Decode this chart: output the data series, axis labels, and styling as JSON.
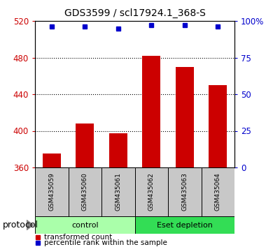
{
  "title": "GDS3599 / scl17924.1_368-S",
  "samples": [
    "GSM435059",
    "GSM435060",
    "GSM435061",
    "GSM435062",
    "GSM435063",
    "GSM435064"
  ],
  "red_values": [
    375,
    408,
    397,
    482,
    470,
    450
  ],
  "blue_values": [
    96,
    96,
    95,
    97,
    97,
    96
  ],
  "ylim_left": [
    360,
    520
  ],
  "ylim_right": [
    0,
    100
  ],
  "yticks_left": [
    360,
    400,
    440,
    480,
    520
  ],
  "yticks_right": [
    0,
    25,
    50,
    75,
    100
  ],
  "ytick_labels_right": [
    "0",
    "25",
    "50",
    "75",
    "100%"
  ],
  "bar_color": "#cc0000",
  "dot_color": "#0000cc",
  "groups": [
    {
      "label": "control",
      "start": 0,
      "end": 3,
      "color": "#aaffaa"
    },
    {
      "label": "Eset depletion",
      "start": 3,
      "end": 6,
      "color": "#33dd55"
    }
  ],
  "protocol_label": "protocol",
  "legend_red": "transformed count",
  "legend_blue": "percentile rank within the sample",
  "bg_color": "#ffffff",
  "plot_bg": "#ffffff",
  "tick_area_color": "#c8c8c8",
  "grid_dotted_color": "#000000",
  "bar_width": 0.55
}
